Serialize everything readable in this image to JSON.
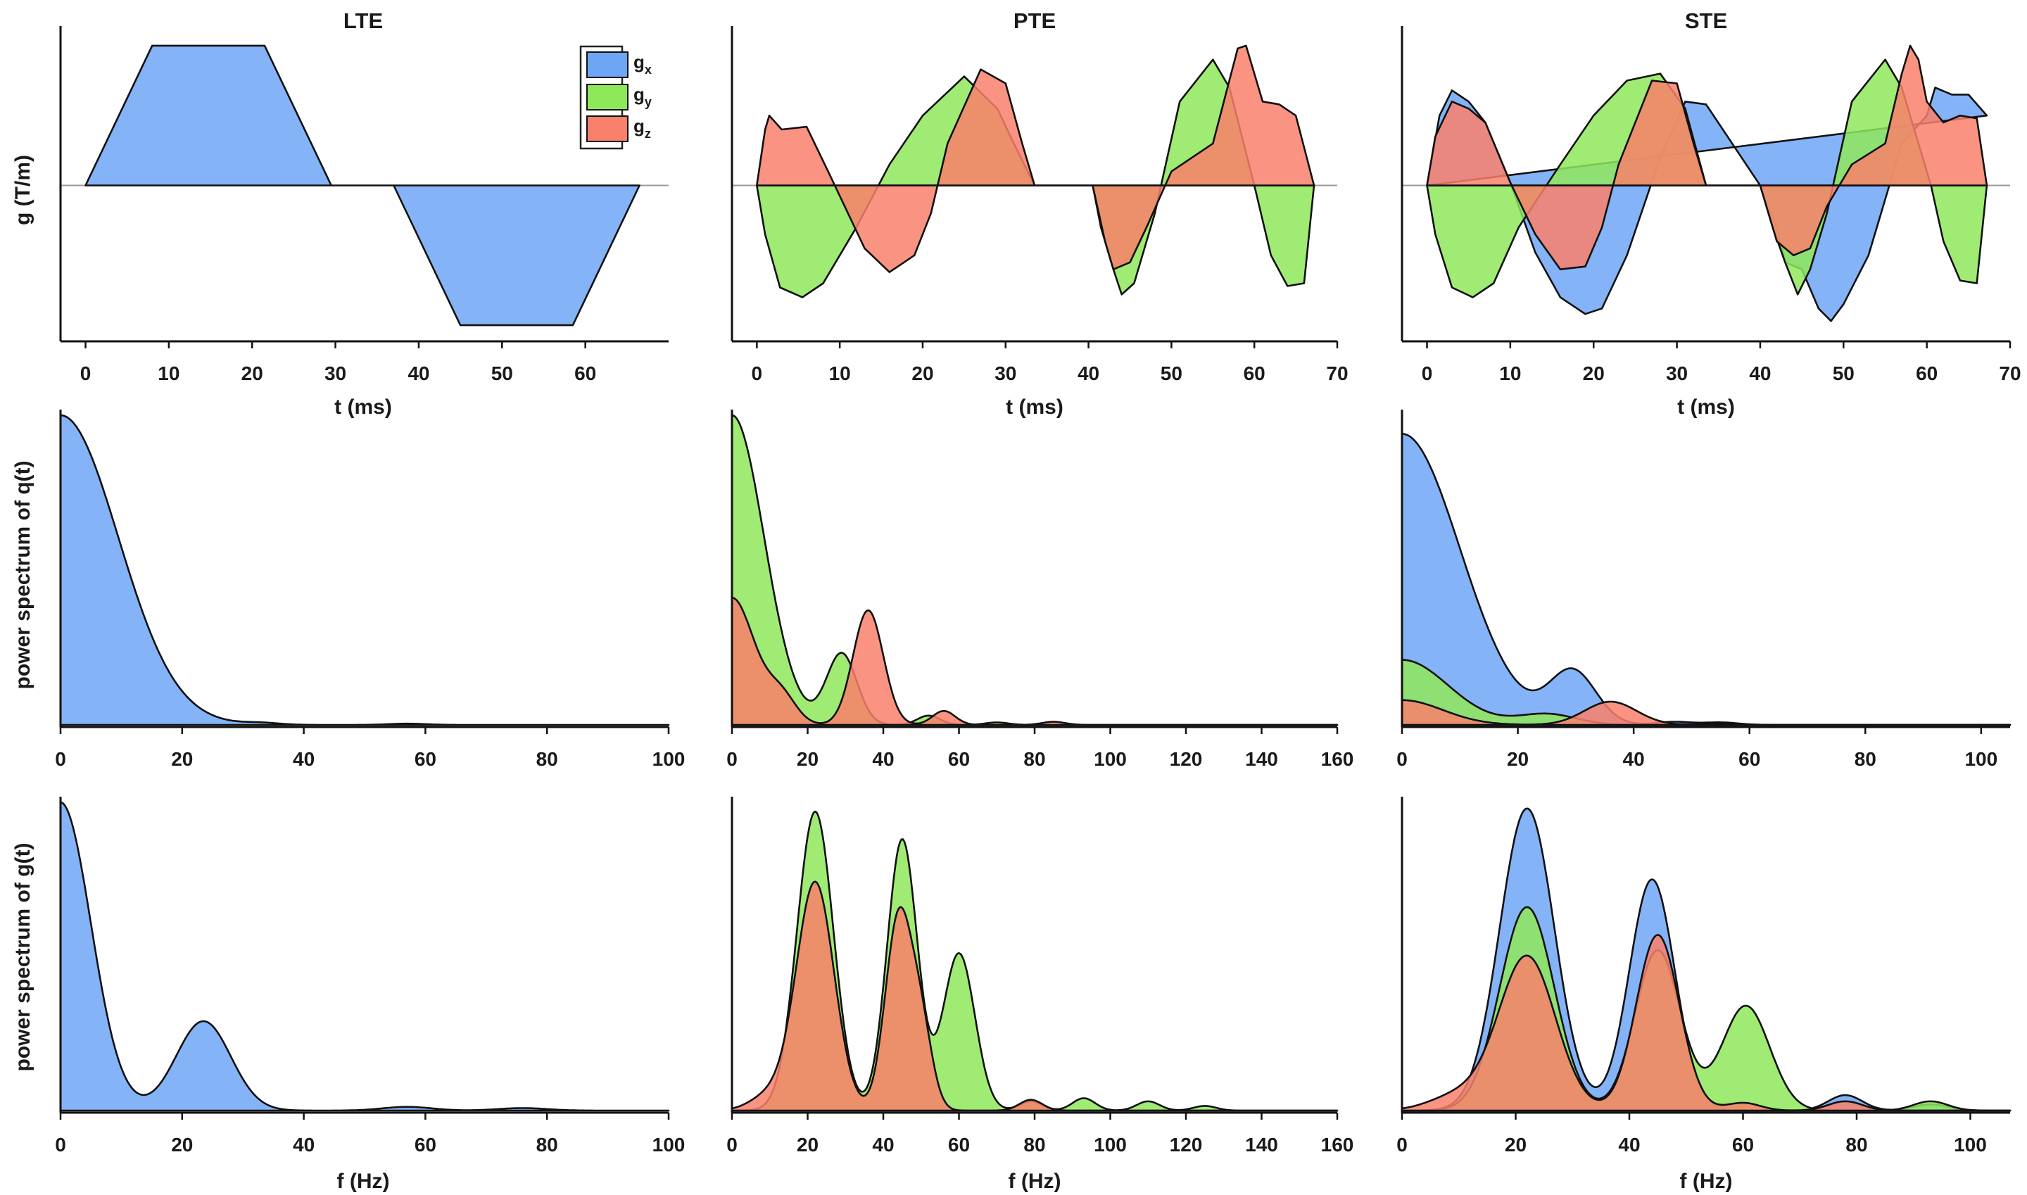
{
  "colors": {
    "x": "#6ea6f6",
    "y": "#8fe85a",
    "z": "#f9806b",
    "outline": "#111111",
    "zeroline": "#999999"
  },
  "legend": {
    "items": [
      {
        "key": "x",
        "base": "g",
        "sub": "x"
      },
      {
        "key": "y",
        "base": "g",
        "sub": "y"
      },
      {
        "key": "z",
        "base": "g",
        "sub": "z"
      }
    ]
  },
  "chart_data": [
    {
      "id": "lte-g",
      "type": "area",
      "title": "LTE",
      "xlabel": "t (ms)",
      "ylabel": "g (T/m)",
      "xlim": [
        -3,
        70
      ],
      "ylim": [
        -1.1,
        1.1
      ],
      "xticks": [
        0,
        10,
        20,
        30,
        40,
        50,
        60
      ],
      "zero_line": true,
      "legend": "top-right",
      "kind": "poly",
      "series": [
        {
          "name": "g_x",
          "key": "x",
          "x": [
            0,
            8,
            21.5,
            29.5,
            37,
            45,
            58.5,
            66.5
          ],
          "y": [
            0,
            1,
            1,
            0,
            0,
            -1,
            -1,
            0
          ]
        }
      ]
    },
    {
      "id": "pte-g",
      "type": "area",
      "title": "PTE",
      "xlabel": "t (ms)",
      "ylabel": "",
      "xlim": [
        -3,
        70
      ],
      "ylim": [
        -1.1,
        1.1
      ],
      "xticks": [
        0,
        10,
        20,
        30,
        40,
        50,
        60,
        70
      ],
      "zero_line": true,
      "kind": "poly",
      "series": [
        {
          "name": "g_y",
          "key": "y",
          "x": [
            0,
            1,
            2.8,
            5.5,
            8,
            12,
            16,
            20,
            25,
            29,
            31,
            33.5,
            40.5,
            41.5,
            43,
            44,
            45.5,
            48,
            51,
            55,
            57,
            60,
            62,
            64,
            66,
            67.2
          ],
          "y": [
            0,
            -0.35,
            -0.73,
            -0.8,
            -0.7,
            -0.3,
            0.15,
            0.5,
            0.78,
            0.55,
            0.3,
            0,
            0,
            -0.3,
            -0.6,
            -0.78,
            -0.7,
            -0.2,
            0.6,
            0.9,
            0.7,
            0,
            -0.5,
            -0.72,
            -0.7,
            0
          ]
        },
        {
          "name": "g_z",
          "key": "z",
          "x": [
            0,
            1,
            1.5,
            3,
            6,
            9,
            13,
            16,
            19,
            21,
            23,
            27,
            30,
            32,
            33.5,
            40.5,
            42,
            43,
            45,
            47,
            50,
            55,
            58,
            59,
            61,
            63,
            65,
            67.2
          ],
          "y": [
            0,
            0.4,
            0.5,
            0.4,
            0.42,
            0.05,
            -0.45,
            -0.62,
            -0.5,
            -0.2,
            0.3,
            0.83,
            0.73,
            0.3,
            0,
            0,
            -0.4,
            -0.6,
            -0.55,
            -0.3,
            0.1,
            0.3,
            0.98,
            1.0,
            0.6,
            0.58,
            0.5,
            0
          ]
        }
      ]
    },
    {
      "id": "ste-g",
      "type": "area",
      "title": "STE",
      "xlabel": "t (ms)",
      "ylabel": "",
      "xlim": [
        -3,
        70
      ],
      "ylim": [
        -1.1,
        1.1
      ],
      "xticks": [
        0,
        10,
        20,
        30,
        40,
        50,
        60,
        70
      ],
      "zero_line": true,
      "kind": "poly",
      "series": [
        {
          "name": "g_x",
          "key": "x",
          "x": [
            0,
            1.5,
            3,
            5,
            7,
            10,
            13,
            16,
            19,
            21,
            24,
            28,
            31,
            33.5,
            40,
            42,
            43,
            45,
            47,
            48.5,
            50,
            53,
            55,
            57,
            60,
            61,
            63,
            65,
            67.2
          ],
          "y": [
            0,
            0.5,
            0.68,
            0.6,
            0.45,
            0.02,
            -0.48,
            -0.8,
            -0.92,
            -0.88,
            -0.5,
            0.2,
            0.6,
            0.58,
            0,
            -0.3,
            -0.55,
            -0.6,
            -0.88,
            -0.97,
            -0.85,
            -0.5,
            -0.1,
            0.3,
            0.5,
            0.7,
            0.65,
            0.65,
            0.5
          ]
        },
        {
          "name": "g_y",
          "key": "y",
          "x": [
            0,
            1,
            3,
            5.5,
            8,
            11,
            16,
            20,
            24,
            28,
            31,
            33.5,
            40,
            41.5,
            43,
            44.5,
            46,
            48,
            51,
            55,
            57,
            59,
            60.5,
            62,
            64,
            66,
            67.2
          ],
          "y": [
            0,
            -0.35,
            -0.73,
            -0.8,
            -0.7,
            -0.3,
            0.15,
            0.5,
            0.75,
            0.8,
            0.55,
            0,
            0,
            -0.3,
            -0.55,
            -0.78,
            -0.6,
            -0.2,
            0.6,
            0.9,
            0.7,
            0.3,
            0,
            -0.4,
            -0.68,
            -0.7,
            0
          ]
        },
        {
          "name": "g_z",
          "key": "z",
          "x": [
            0,
            1,
            3,
            5,
            7,
            10,
            13,
            16,
            19,
            21,
            23,
            27,
            30,
            32,
            33.5,
            40,
            42,
            44,
            46,
            48,
            51,
            55,
            57,
            58,
            59,
            60,
            62,
            64,
            66,
            67.2
          ],
          "y": [
            0,
            0.35,
            0.6,
            0.55,
            0.45,
            0.02,
            -0.35,
            -0.6,
            -0.58,
            -0.3,
            0.15,
            0.75,
            0.73,
            0.3,
            0,
            0,
            -0.4,
            -0.5,
            -0.45,
            -0.15,
            0.15,
            0.3,
            0.8,
            1.0,
            0.9,
            0.6,
            0.45,
            0.5,
            0.48,
            0
          ]
        }
      ]
    },
    {
      "id": "lte-q",
      "type": "area",
      "title": "",
      "xlabel": "",
      "ylabel": "power spectrum of q(t)",
      "xlim": [
        0,
        100
      ],
      "ylim": [
        0,
        1.0
      ],
      "xticks": [
        0,
        20,
        40,
        60,
        80,
        100
      ],
      "kind": "peaks",
      "grid_max": 100,
      "series": [
        {
          "name": "g_x",
          "key": "x",
          "peaks": [
            {
              "c": 0,
              "a": 1.0,
              "w": 9.5
            },
            {
              "c": 33,
              "a": 0.006,
              "w": 3
            },
            {
              "c": 57,
              "a": 0.004,
              "w": 3
            }
          ]
        }
      ]
    },
    {
      "id": "pte-q",
      "type": "area",
      "title": "",
      "xlabel": "",
      "ylabel": "",
      "xlim": [
        0,
        160
      ],
      "ylim": [
        0,
        1.0
      ],
      "xticks": [
        0,
        20,
        40,
        60,
        80,
        100,
        120,
        140,
        160
      ],
      "kind": "peaks",
      "grid_max": 160,
      "series": [
        {
          "name": "g_y",
          "key": "y",
          "peaks": [
            {
              "c": 0,
              "a": 1.0,
              "w": 8.5
            },
            {
              "c": 29,
              "a": 0.23,
              "w": 4
            },
            {
              "c": 52,
              "a": 0.03,
              "w": 3
            },
            {
              "c": 70,
              "a": 0.008,
              "w": 3
            }
          ]
        },
        {
          "name": "g_z",
          "key": "z",
          "peaks": [
            {
              "c": 0,
              "a": 0.41,
              "w": 6
            },
            {
              "c": 13,
              "a": 0.09,
              "w": 4
            },
            {
              "c": 36,
              "a": 0.37,
              "w": 4
            },
            {
              "c": 56,
              "a": 0.045,
              "w": 3
            },
            {
              "c": 85,
              "a": 0.01,
              "w": 3
            }
          ]
        }
      ]
    },
    {
      "id": "ste-q",
      "type": "area",
      "title": "",
      "xlabel": "",
      "ylabel": "",
      "xlim": [
        0,
        105
      ],
      "ylim": [
        0,
        1.0
      ],
      "xticks": [
        0,
        20,
        40,
        60,
        80,
        100
      ],
      "kind": "peaks",
      "grid_max": 105,
      "series": [
        {
          "name": "g_x",
          "key": "x",
          "peaks": [
            {
              "c": 0,
              "a": 0.94,
              "w": 10
            },
            {
              "c": 29.5,
              "a": 0.17,
              "w": 4
            },
            {
              "c": 47,
              "a": 0.01,
              "w": 3
            },
            {
              "c": 55,
              "a": 0.008,
              "w": 3
            }
          ]
        },
        {
          "name": "g_y",
          "key": "y",
          "peaks": [
            {
              "c": 0,
              "a": 0.21,
              "w": 8
            },
            {
              "c": 25,
              "a": 0.035,
              "w": 5
            }
          ]
        },
        {
          "name": "g_z",
          "key": "z",
          "peaks": [
            {
              "c": 0,
              "a": 0.08,
              "w": 7
            },
            {
              "c": 36,
              "a": 0.075,
              "w": 4.5
            },
            {
              "c": 55,
              "a": 0.005,
              "w": 3
            }
          ]
        }
      ]
    },
    {
      "id": "lte-gs",
      "type": "area",
      "title": "",
      "xlabel": "f (Hz)",
      "ylabel": "power spectrum of g(t)",
      "xlim": [
        0,
        100
      ],
      "ylim": [
        0,
        1.0
      ],
      "xticks": [
        0,
        20,
        40,
        60,
        80,
        100
      ],
      "kind": "peaks",
      "grid_max": 100,
      "series": [
        {
          "name": "g_x",
          "key": "x",
          "peaks": [
            {
              "c": 0,
              "a": 1.0,
              "w": 5
            },
            {
              "c": 23.5,
              "a": 0.29,
              "w": 4.5
            },
            {
              "c": 57,
              "a": 0.012,
              "w": 4
            },
            {
              "c": 76,
              "a": 0.008,
              "w": 4
            }
          ]
        }
      ]
    },
    {
      "id": "pte-gs",
      "type": "area",
      "title": "",
      "xlabel": "f (Hz)",
      "ylabel": "",
      "xlim": [
        0,
        160
      ],
      "ylim": [
        0,
        1.0
      ],
      "xticks": [
        0,
        20,
        40,
        60,
        80,
        100,
        120,
        140,
        160
      ],
      "kind": "peaks",
      "grid_max": 160,
      "series": [
        {
          "name": "g_y",
          "key": "y",
          "peaks": [
            {
              "c": 22,
              "a": 0.97,
              "w": 4.8
            },
            {
              "c": 45,
              "a": 0.88,
              "w": 4
            },
            {
              "c": 60,
              "a": 0.51,
              "w": 4.2
            },
            {
              "c": 79,
              "a": 0.03,
              "w": 3
            },
            {
              "c": 93,
              "a": 0.04,
              "w": 3
            },
            {
              "c": 110,
              "a": 0.03,
              "w": 3
            },
            {
              "c": 125,
              "a": 0.015,
              "w": 3
            }
          ]
        },
        {
          "name": "g_z",
          "key": "z",
          "peaks": [
            {
              "c": 22,
              "a": 0.74,
              "w": 5
            },
            {
              "c": 10,
              "a": 0.05,
              "w": 5
            },
            {
              "c": 44,
              "a": 0.62,
              "w": 3.5
            },
            {
              "c": 50,
              "a": 0.25,
              "w": 3
            },
            {
              "c": 79,
              "a": 0.035,
              "w": 3
            }
          ]
        }
      ]
    },
    {
      "id": "ste-gs",
      "type": "area",
      "title": "",
      "xlabel": "f (Hz)",
      "ylabel": "",
      "xlim": [
        0,
        107
      ],
      "ylim": [
        0,
        1.0
      ],
      "xticks": [
        0,
        20,
        40,
        60,
        80,
        100
      ],
      "kind": "peaks",
      "grid_max": 107,
      "series": [
        {
          "name": "g_x",
          "key": "x",
          "peaks": [
            {
              "c": 22,
              "a": 0.98,
              "w": 4.8
            },
            {
              "c": 44,
              "a": 0.75,
              "w": 4
            },
            {
              "c": 78,
              "a": 0.05,
              "w": 3
            },
            {
              "c": 93,
              "a": 0.02,
              "w": 3
            }
          ]
        },
        {
          "name": "g_y",
          "key": "y",
          "peaks": [
            {
              "c": 22,
              "a": 0.66,
              "w": 4.8
            },
            {
              "c": 45,
              "a": 0.52,
              "w": 4
            },
            {
              "c": 60.5,
              "a": 0.34,
              "w": 4.2
            },
            {
              "c": 93,
              "a": 0.03,
              "w": 3
            }
          ]
        },
        {
          "name": "g_z",
          "key": "z",
          "peaks": [
            {
              "c": 22,
              "a": 0.5,
              "w": 5
            },
            {
              "c": 10,
              "a": 0.05,
              "w": 5
            },
            {
              "c": 45,
              "a": 0.57,
              "w": 3.8
            },
            {
              "c": 60,
              "a": 0.025,
              "w": 3
            },
            {
              "c": 78,
              "a": 0.03,
              "w": 3
            }
          ]
        }
      ]
    }
  ]
}
